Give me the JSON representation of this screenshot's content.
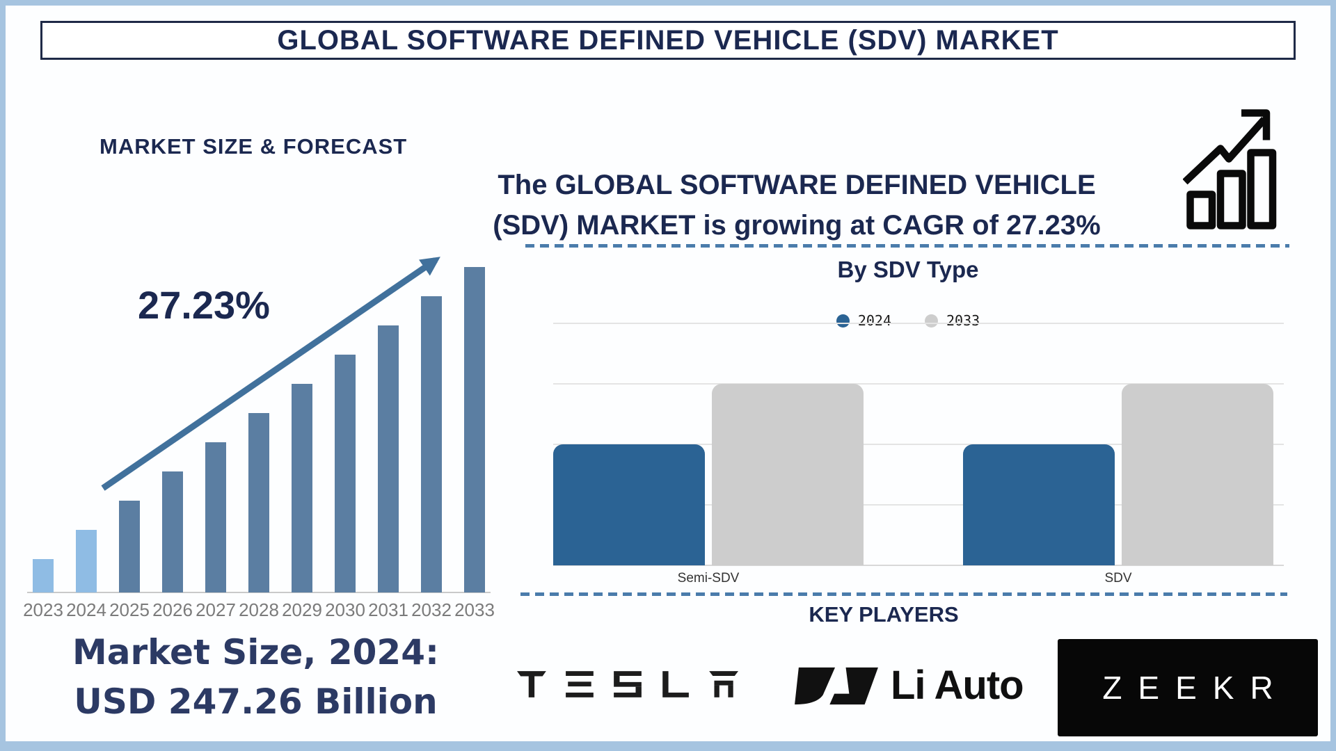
{
  "header": {
    "title": "GLOBAL SOFTWARE DEFINED VEHICLE (SDV) MARKET"
  },
  "left_panel": {
    "section_title": "MARKET SIZE & FORECAST",
    "cagr_label": "27.23%",
    "market_size_line1": "Market Size, 2024:",
    "market_size_line2": "USD 247.26 Billion"
  },
  "right_panel": {
    "growth_line1": "The GLOBAL SOFTWARE DEFINED VEHICLE",
    "growth_line2": "(SDV) MARKET is growing at CAGR of 27.23%",
    "by_type_title": "By SDV Type",
    "key_players_title": "KEY PLAYERS",
    "players": [
      {
        "label": "TESLA",
        "logo": "tesla-wordmark"
      },
      {
        "label": "Li Auto",
        "logo": "liauto-logo"
      },
      {
        "label": "ZEEKR",
        "logo": "zeekr-wordmark"
      }
    ]
  },
  "icons": {
    "growth_chart_icon": "bar-chart-with-rising-zigzag-arrow",
    "trend_arrow_icon": "diagonal-up-arrow"
  },
  "colors": {
    "navy_text": "#1B2850",
    "market_size_text": "#2C3A64",
    "frame_blue": "#A6C4E0",
    "forecast_bar_light": "#8FBCE4",
    "forecast_bar_dark": "#5B7EA2",
    "trend_arrow": "#41719C",
    "dashed_line": "#4A7CAB",
    "type_bar_2024": "#2B6394",
    "type_bar_2033": "#CDCDCD",
    "year_label_gray": "#7B7B7B",
    "logo_black": "#0A0A0A"
  },
  "chart_data": [
    {
      "id": "market-size-forecast",
      "type": "bar",
      "title": "MARKET SIZE & FORECAST",
      "categories": [
        "2023",
        "2024",
        "2025",
        "2026",
        "2027",
        "2028",
        "2029",
        "2030",
        "2031",
        "2032",
        "2033"
      ],
      "values_relative_pct": [
        10.3,
        19.2,
        28.2,
        37.2,
        46.2,
        55.1,
        64.1,
        73.1,
        82.1,
        91.0,
        100
      ],
      "value_axis": "none shown (stylized linear growth ramp, no y-axis ticks)",
      "known_values": {
        "2024": "USD 247.26 Billion",
        "cagr_2024_2033": "27.23%"
      },
      "bar_color_light": "#8FBCE4",
      "bar_color_dark": "#5B7EA2",
      "light_bar_count": 2,
      "annotations": [
        "27.23% CAGR label with diagonal up arrow over bars"
      ],
      "grid": false
    },
    {
      "id": "by-sdv-type",
      "type": "bar",
      "title": "By SDV Type",
      "categories": [
        "Semi-SDV",
        "SDV"
      ],
      "series": [
        {
          "name": "2024",
          "values": [
            2,
            2
          ],
          "color": "#2B6394"
        },
        {
          "name": "2033",
          "values": [
            3,
            3
          ],
          "color": "#CDCDCD"
        }
      ],
      "ylim": [
        0,
        4
      ],
      "note": "no numeric y-axis labels; bar heights estimated in gridline units (4 equal gridline gaps)",
      "legend_position": "top-center",
      "grid": true
    }
  ]
}
